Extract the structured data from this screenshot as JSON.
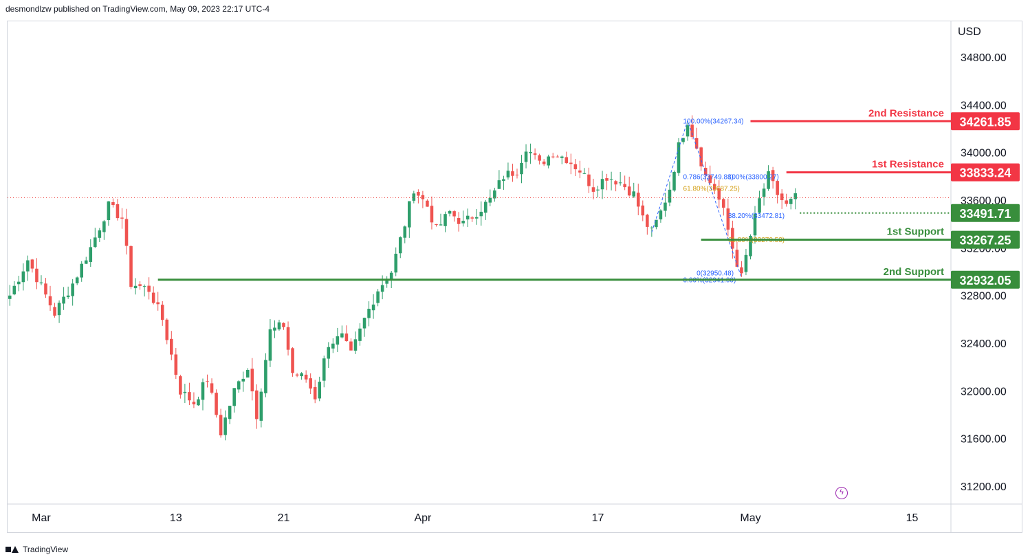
{
  "header": {
    "published": "desmondlzw published on TradingView.com, May 09, 2023 22:17 UTC-4"
  },
  "footer": {
    "brand": "TradingView"
  },
  "colors": {
    "up": "#2e9e6b",
    "down": "#ef5350",
    "resistance": "#f23645",
    "support": "#388e3c",
    "fib": "#2962ff",
    "fib_gold": "#d4a017"
  },
  "chart_data": {
    "type": "candlestick",
    "currency": "USD",
    "ylim": [
      31050,
      35100
    ],
    "y_ticks": [
      34800,
      34400,
      34000,
      33600,
      33200,
      32800,
      32400,
      32000,
      31600,
      31200
    ],
    "y_tick_labels": [
      "34800.00",
      "34400.00",
      "34000.00",
      "33600.00",
      "33200.00",
      "32800.00",
      "32400.00",
      "32000.00",
      "31600.00",
      "31200.00"
    ],
    "x_labels": [
      {
        "label": "Mar",
        "bar": 7
      },
      {
        "label": "13",
        "bar": 37
      },
      {
        "label": "21",
        "bar": 61
      },
      {
        "label": "Apr",
        "bar": 92
      },
      {
        "label": "17",
        "bar": 131
      },
      {
        "label": "May",
        "bar": 165
      },
      {
        "label": "15",
        "bar": 201
      }
    ],
    "bar_count": 210,
    "last_price": 33620,
    "levels": [
      {
        "name": "2nd Resistance",
        "price": 34261.85,
        "label": "34261.85",
        "kind": "resistance",
        "start_bar": 165
      },
      {
        "name": "1st Resistance",
        "price": 33833.24,
        "label": "33833.24",
        "kind": "resistance",
        "start_bar": 173
      },
      {
        "name": "",
        "price": 33491.71,
        "label": "33491.71",
        "kind": "support-dotted",
        "start_bar": 176
      },
      {
        "name": "1st Support",
        "price": 33267.25,
        "label": "33267.25",
        "kind": "support",
        "start_bar": 154
      },
      {
        "name": "2nd Support",
        "price": 32932.05,
        "label": "32932.05",
        "kind": "support",
        "start_bar": 33
      }
    ],
    "fib_labels": [
      {
        "text": "100.00%(34267.34)",
        "price": 34267.34,
        "bar": 150,
        "color": "fib"
      },
      {
        "text": "0.786(33749.88)",
        "price": 33800,
        "bar": 150,
        "color": "fib"
      },
      {
        "text": "100%(33800.27)",
        "price": 33800,
        "bar": 160,
        "color": "fib"
      },
      {
        "text": "61.80%(33687.25)",
        "price": 33700,
        "bar": 150,
        "color": "fib_gold"
      },
      {
        "text": "38.20%(33472.81)",
        "price": 33472.81,
        "bar": 160,
        "color": "fib"
      },
      {
        "text": "61.80%(33270.53)",
        "price": 33270.53,
        "bar": 160,
        "color": "fib_gold"
      },
      {
        "text": "0(32950.48)",
        "price": 32990,
        "bar": 153,
        "color": "fib"
      },
      {
        "text": "0.00%(32941.00)",
        "price": 32935,
        "bar": 150,
        "color": "fib"
      }
    ],
    "anchors": [
      {
        "bar": 0,
        "price": 32800
      },
      {
        "bar": 4,
        "price": 33100
      },
      {
        "bar": 10,
        "price": 32650
      },
      {
        "bar": 14,
        "price": 32900
      },
      {
        "bar": 18,
        "price": 33200
      },
      {
        "bar": 22,
        "price": 33550
      },
      {
        "bar": 25,
        "price": 33450
      },
      {
        "bar": 27,
        "price": 32900
      },
      {
        "bar": 31,
        "price": 32850
      },
      {
        "bar": 34,
        "price": 32600
      },
      {
        "bar": 38,
        "price": 32000
      },
      {
        "bar": 41,
        "price": 31900
      },
      {
        "bar": 44,
        "price": 32100
      },
      {
        "bar": 47,
        "price": 31650
      },
      {
        "bar": 50,
        "price": 32000
      },
      {
        "bar": 53,
        "price": 32200
      },
      {
        "bar": 55,
        "price": 31800
      },
      {
        "bar": 58,
        "price": 32500
      },
      {
        "bar": 61,
        "price": 32550
      },
      {
        "bar": 63,
        "price": 32150
      },
      {
        "bar": 66,
        "price": 32100
      },
      {
        "bar": 68,
        "price": 31950
      },
      {
        "bar": 71,
        "price": 32400
      },
      {
        "bar": 74,
        "price": 32450
      },
      {
        "bar": 76,
        "price": 32300
      },
      {
        "bar": 79,
        "price": 32600
      },
      {
        "bar": 82,
        "price": 32850
      },
      {
        "bar": 85,
        "price": 33000
      },
      {
        "bar": 88,
        "price": 33400
      },
      {
        "bar": 90,
        "price": 33700
      },
      {
        "bar": 93,
        "price": 33550
      },
      {
        "bar": 95,
        "price": 33350
      },
      {
        "bar": 98,
        "price": 33500
      },
      {
        "bar": 101,
        "price": 33400
      },
      {
        "bar": 104,
        "price": 33500
      },
      {
        "bar": 107,
        "price": 33600
      },
      {
        "bar": 110,
        "price": 33800
      },
      {
        "bar": 113,
        "price": 33850
      },
      {
        "bar": 115,
        "price": 34050
      },
      {
        "bar": 118,
        "price": 33900
      },
      {
        "bar": 121,
        "price": 34000
      },
      {
        "bar": 124,
        "price": 33950
      },
      {
        "bar": 127,
        "price": 33850
      },
      {
        "bar": 130,
        "price": 33700
      },
      {
        "bar": 133,
        "price": 33800
      },
      {
        "bar": 136,
        "price": 33750
      },
      {
        "bar": 139,
        "price": 33650
      },
      {
        "bar": 141,
        "price": 33450
      },
      {
        "bar": 143,
        "price": 33330
      },
      {
        "bar": 145,
        "price": 33500
      },
      {
        "bar": 147,
        "price": 33700
      },
      {
        "bar": 149,
        "price": 34050
      },
      {
        "bar": 151,
        "price": 34267
      },
      {
        "bar": 153,
        "price": 34050
      },
      {
        "bar": 155,
        "price": 33800
      },
      {
        "bar": 157,
        "price": 33700
      },
      {
        "bar": 159,
        "price": 33500
      },
      {
        "bar": 161,
        "price": 33200
      },
      {
        "bar": 163,
        "price": 32950
      },
      {
        "bar": 165,
        "price": 33300
      },
      {
        "bar": 167,
        "price": 33600
      },
      {
        "bar": 169,
        "price": 33800
      },
      {
        "bar": 171,
        "price": 33650
      },
      {
        "bar": 173,
        "price": 33550
      },
      {
        "bar": 175,
        "price": 33620
      }
    ]
  }
}
